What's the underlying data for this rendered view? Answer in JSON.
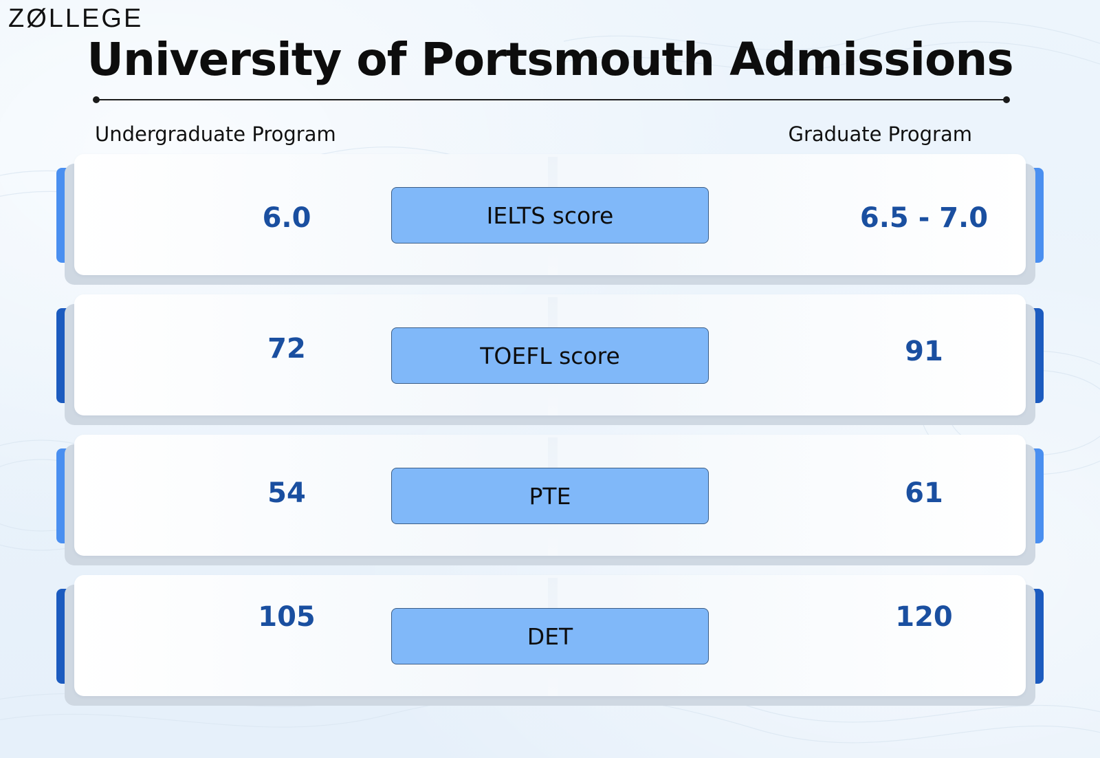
{
  "brand": {
    "logo_text": "ZØLLEGE"
  },
  "title": "University of Portsmouth Admissions",
  "columns": {
    "left": "Undergraduate Program",
    "right": "Graduate Program"
  },
  "rows": [
    {
      "label": "IELTS score",
      "undergraduate": "6.0",
      "graduate": "6.5 - 7.0",
      "accent_color": "#4a8ff0"
    },
    {
      "label": "TOEFL score",
      "undergraduate": "72",
      "graduate": "91",
      "accent_color": "#1c5bbf"
    },
    {
      "label": "PTE",
      "undergraduate": "54",
      "graduate": "61",
      "accent_color": "#4a8ff0"
    },
    {
      "label": "DET",
      "undergraduate": "105",
      "graduate": "120",
      "accent_color": "#1c5bbf"
    }
  ],
  "colors": {
    "pill": "#80b8f9",
    "value_text": "#1a4fa0",
    "light_accent": "#4a8ff0",
    "dark_accent": "#1c5bbf"
  }
}
